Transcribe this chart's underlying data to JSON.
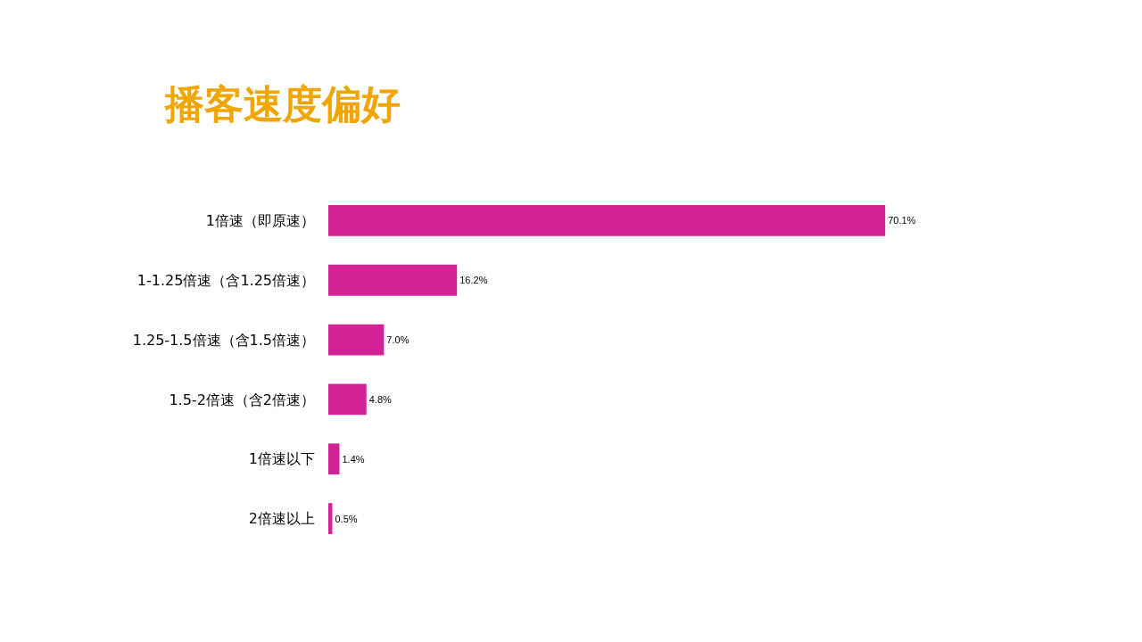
{
  "chart_data": {
    "type": "bar",
    "orientation": "horizontal",
    "title": "播客速度偏好",
    "categories": [
      "1倍速（即原速）",
      "1-1.25倍速（含1.25倍速）",
      "1.25-1.5倍速（含1.5倍速）",
      "1.5-2倍速（含2倍速）",
      "1倍速以下",
      "2倍速以上"
    ],
    "values": [
      70.1,
      16.2,
      7.0,
      4.8,
      1.4,
      0.5
    ],
    "value_labels": [
      "70.1%",
      "16.2%",
      "7.0%",
      "4.8%",
      "1.4%",
      "0.5%"
    ],
    "color": "#d12394",
    "tick_labels": "y"
  }
}
